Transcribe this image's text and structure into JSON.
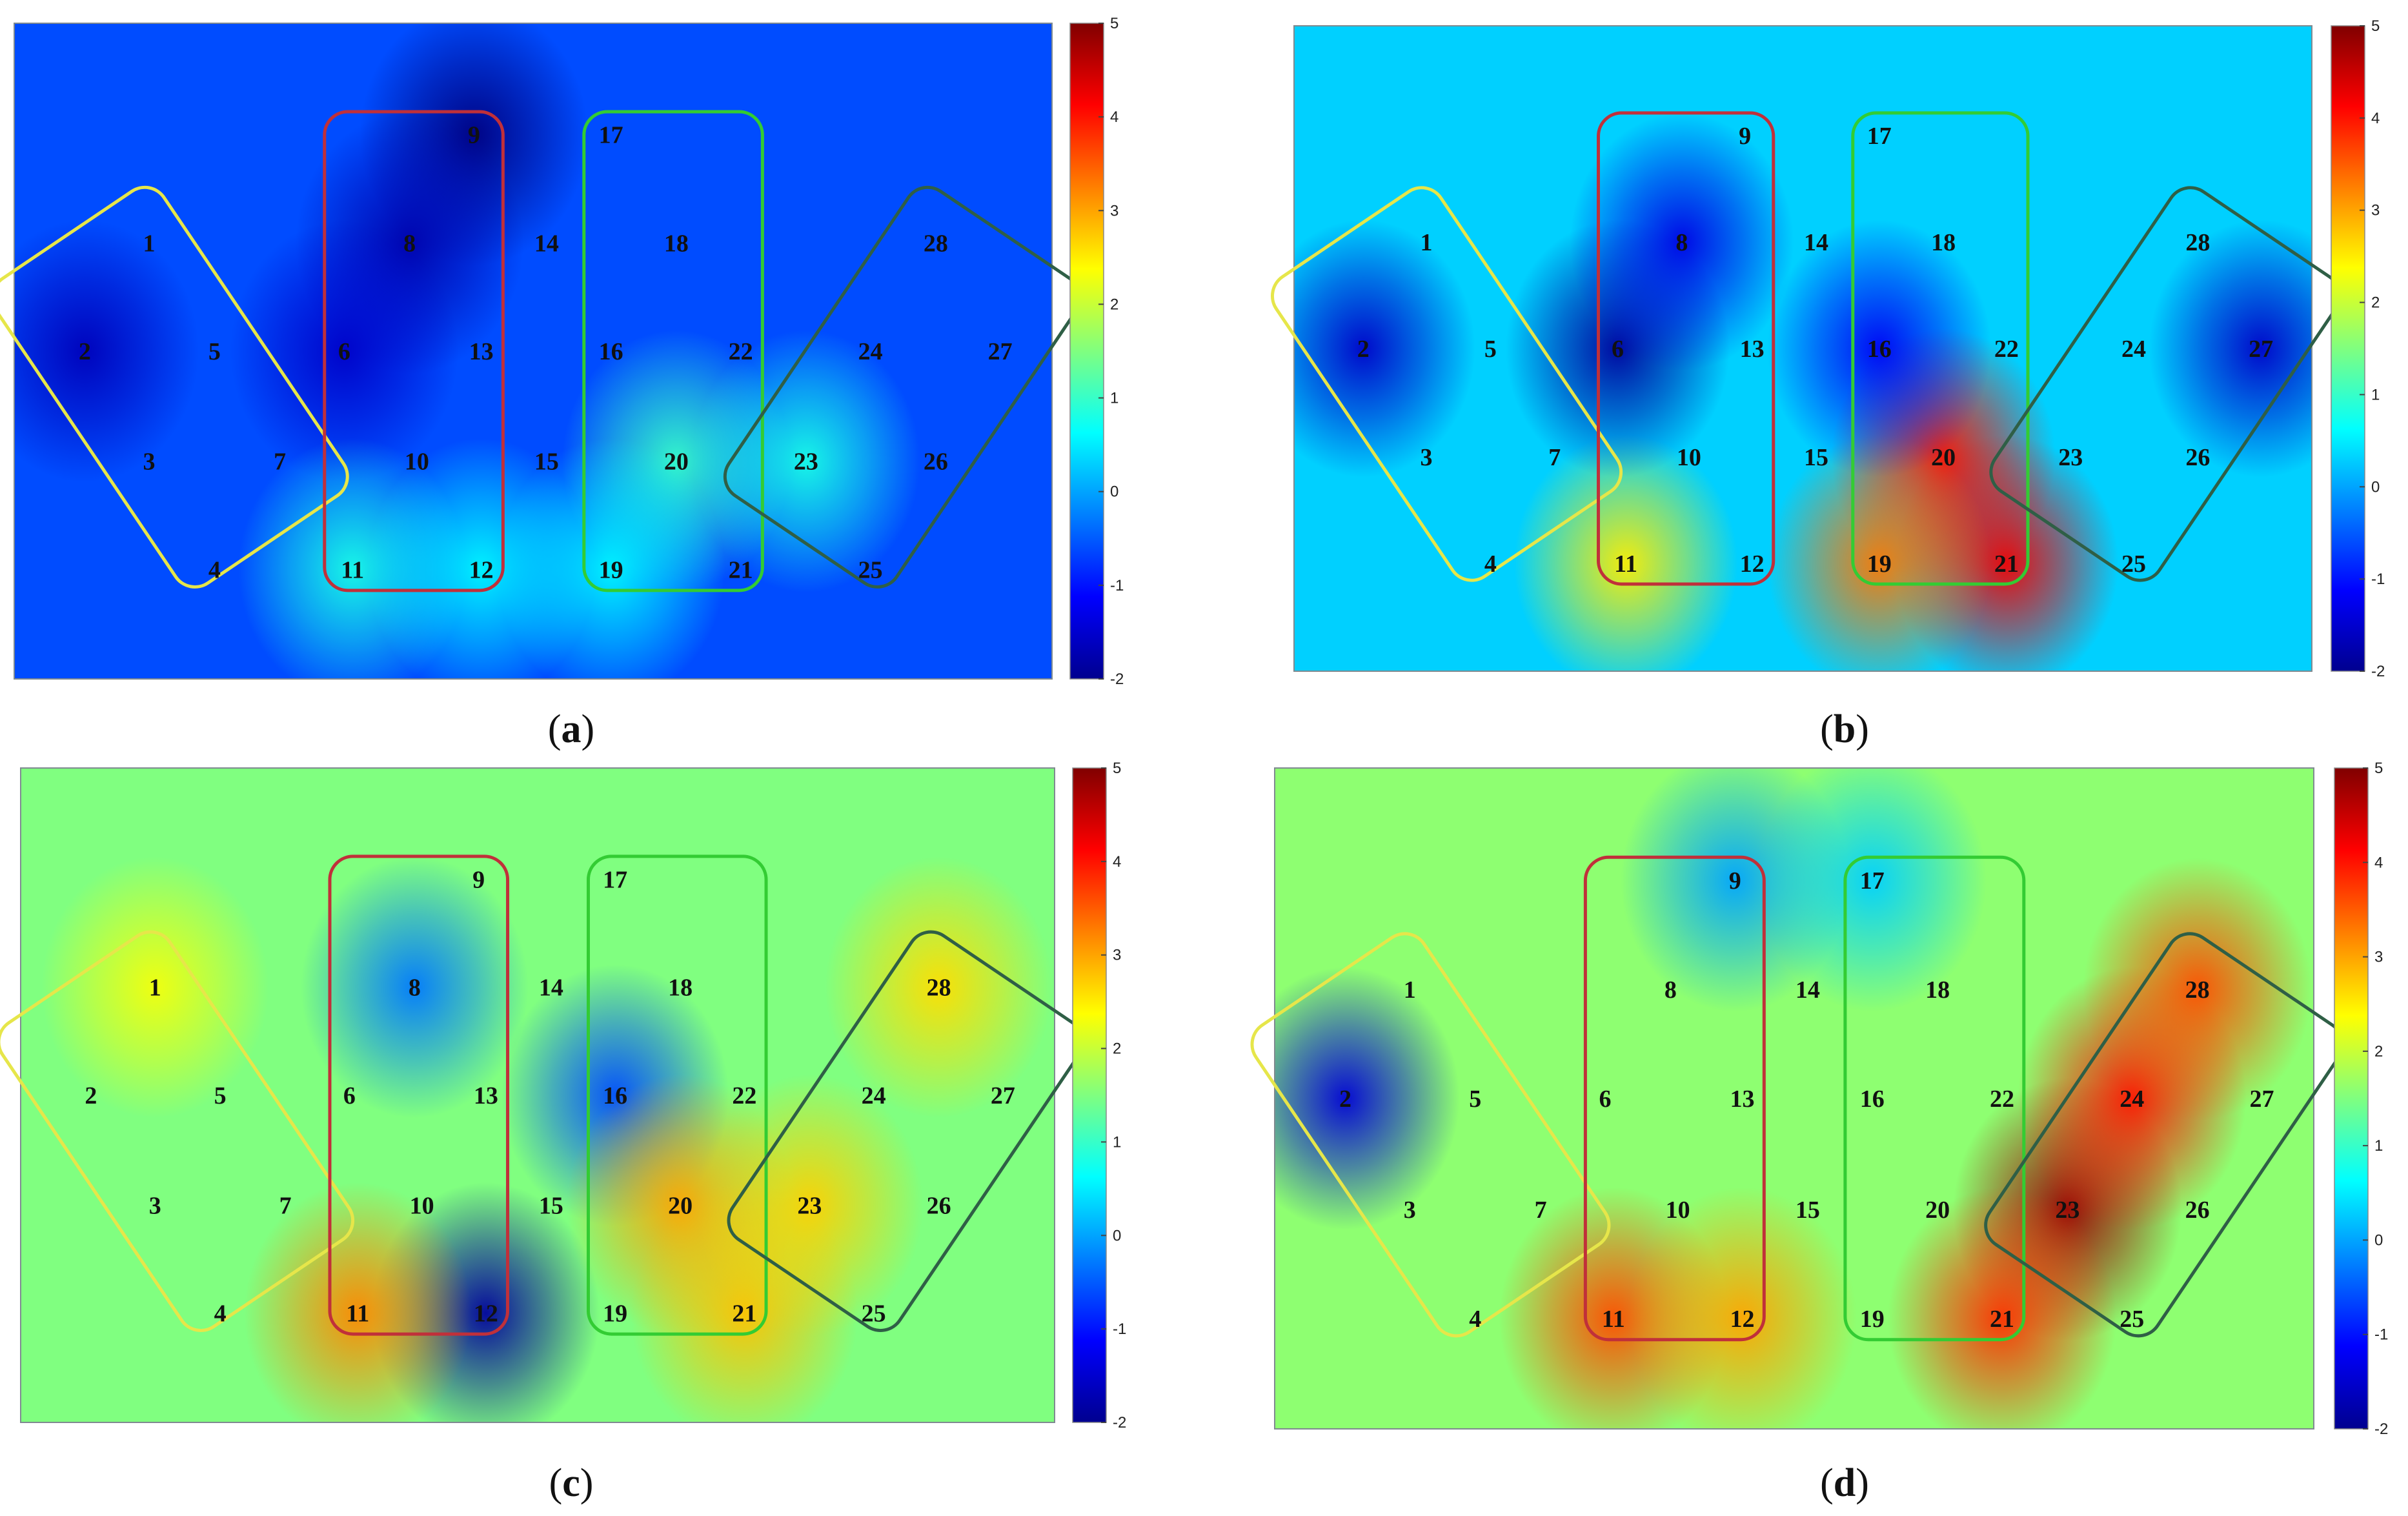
{
  "chart_data": [
    {
      "type": "heatmap",
      "panel_label": "a",
      "colorbar": {
        "min": -2,
        "max": 5,
        "ticks": [
          5,
          4,
          3,
          2,
          1,
          0,
          -1,
          -2
        ],
        "colormap": "jet"
      },
      "electrodes": [
        "1",
        "2",
        "3",
        "4",
        "5",
        "6",
        "7",
        "8",
        "9",
        "10",
        "11",
        "12",
        "13",
        "14",
        "15",
        "16",
        "17",
        "18",
        "19",
        "20",
        "21",
        "22",
        "23",
        "24",
        "25",
        "26",
        "27",
        "28"
      ],
      "regions": [
        {
          "color": "#e6e64a",
          "electrodes": [
            "1",
            "2",
            "3",
            "4",
            "5",
            "7"
          ]
        },
        {
          "color": "#c0303a",
          "electrodes": [
            "6",
            "8",
            "9",
            "10",
            "11",
            "12",
            "13"
          ]
        },
        {
          "color": "#33cc33",
          "electrodes": [
            "16",
            "17",
            "18",
            "19",
            "20",
            "21",
            "22"
          ]
        },
        {
          "color": "#2f5f46",
          "electrodes": [
            "23",
            "24",
            "25",
            "26",
            "27",
            "28"
          ]
        }
      ],
      "baseline": -0.6,
      "hotspots": [
        {
          "near": "9",
          "value": -2.0
        },
        {
          "near": "8",
          "value": -1.7
        },
        {
          "near": "2",
          "value": -1.6
        },
        {
          "near": "6",
          "value": -1.5
        },
        {
          "near": "20",
          "value": 1.0
        },
        {
          "near": "11",
          "value": 0.8
        },
        {
          "near": "12",
          "value": 0.6
        },
        {
          "near": "23",
          "value": 0.8
        },
        {
          "near": "19",
          "value": 0.6
        }
      ]
    },
    {
      "type": "heatmap",
      "panel_label": "b",
      "colorbar": {
        "min": -2,
        "max": 5,
        "ticks": [
          5,
          4,
          3,
          2,
          1,
          0,
          -1,
          -2
        ],
        "colormap": "jet"
      },
      "electrodes": [
        "1",
        "2",
        "3",
        "4",
        "5",
        "6",
        "7",
        "8",
        "9",
        "10",
        "11",
        "12",
        "13",
        "14",
        "15",
        "16",
        "17",
        "18",
        "19",
        "20",
        "21",
        "22",
        "23",
        "24",
        "25",
        "26",
        "27",
        "28"
      ],
      "regions": [
        {
          "color": "#e6e64a",
          "electrodes": [
            "1",
            "2",
            "3",
            "4",
            "5",
            "7"
          ]
        },
        {
          "color": "#c0303a",
          "electrodes": [
            "6",
            "8",
            "9",
            "10",
            "11",
            "12",
            "13"
          ]
        },
        {
          "color": "#33cc33",
          "electrodes": [
            "16",
            "17",
            "18",
            "19",
            "20",
            "21",
            "22"
          ]
        },
        {
          "color": "#2f5f46",
          "electrodes": [
            "23",
            "24",
            "25",
            "26",
            "27",
            "28"
          ]
        }
      ],
      "baseline": 0.3,
      "hotspots": [
        {
          "near": "20",
          "value": 4.0
        },
        {
          "near": "21",
          "value": 4.2
        },
        {
          "near": "19",
          "value": 3.3
        },
        {
          "near": "11",
          "value": 2.5
        },
        {
          "near": "6",
          "value": -1.8
        },
        {
          "near": "2",
          "value": -1.5
        },
        {
          "near": "27",
          "value": -1.5
        },
        {
          "near": "8",
          "value": -1.3
        },
        {
          "near": "16",
          "value": -1.2
        }
      ]
    },
    {
      "type": "heatmap",
      "panel_label": "c",
      "colorbar": {
        "min": -2,
        "max": 5,
        "ticks": [
          5,
          4,
          3,
          2,
          1,
          0,
          -1,
          -2
        ],
        "colormap": "jet"
      },
      "electrodes": [
        "1",
        "2",
        "3",
        "4",
        "5",
        "6",
        "7",
        "8",
        "9",
        "10",
        "11",
        "12",
        "13",
        "14",
        "15",
        "16",
        "17",
        "18",
        "19",
        "20",
        "21",
        "22",
        "23",
        "24",
        "25",
        "26",
        "27",
        "28"
      ],
      "regions": [
        {
          "color": "#e6e64a",
          "electrodes": [
            "1",
            "2",
            "3",
            "4",
            "5",
            "7"
          ]
        },
        {
          "color": "#c0303a",
          "electrodes": [
            "6",
            "8",
            "9",
            "10",
            "11",
            "12",
            "13"
          ]
        },
        {
          "color": "#33cc33",
          "electrodes": [
            "16",
            "17",
            "18",
            "19",
            "20",
            "21",
            "22"
          ]
        },
        {
          "color": "#2f5f46",
          "electrodes": [
            "23",
            "24",
            "25",
            "26",
            "27",
            "28"
          ]
        }
      ],
      "baseline": 1.5,
      "hotspots": [
        {
          "near": "12",
          "value": -1.8
        },
        {
          "near": "16",
          "value": -0.6
        },
        {
          "near": "8",
          "value": -0.3
        },
        {
          "near": "11",
          "value": 3.2
        },
        {
          "near": "20",
          "value": 3.0
        },
        {
          "near": "21",
          "value": 2.8
        },
        {
          "near": "23",
          "value": 2.7
        },
        {
          "near": "1",
          "value": 2.3
        },
        {
          "near": "28",
          "value": 2.6
        }
      ]
    },
    {
      "type": "heatmap",
      "panel_label": "d",
      "colorbar": {
        "min": -2,
        "max": 5,
        "ticks": [
          5,
          4,
          3,
          2,
          1,
          0,
          -1,
          -2
        ],
        "colormap": "jet"
      },
      "electrodes": [
        "1",
        "2",
        "3",
        "4",
        "5",
        "6",
        "7",
        "8",
        "9",
        "10",
        "11",
        "12",
        "13",
        "14",
        "15",
        "16",
        "17",
        "18",
        "19",
        "20",
        "21",
        "22",
        "23",
        "24",
        "25",
        "26",
        "27",
        "28"
      ],
      "regions": [
        {
          "color": "#e6e64a",
          "electrodes": [
            "1",
            "2",
            "3",
            "4",
            "5",
            "7"
          ]
        },
        {
          "color": "#c0303a",
          "electrodes": [
            "6",
            "8",
            "9",
            "10",
            "11",
            "12",
            "13"
          ]
        },
        {
          "color": "#33cc33",
          "electrodes": [
            "16",
            "17",
            "18",
            "19",
            "20",
            "21",
            "22"
          ]
        },
        {
          "color": "#2f5f46",
          "electrodes": [
            "23",
            "24",
            "25",
            "26",
            "27",
            "28"
          ]
        }
      ],
      "baseline": 1.6,
      "hotspots": [
        {
          "near": "23",
          "value": 4.8
        },
        {
          "near": "24",
          "value": 4.0
        },
        {
          "near": "28",
          "value": 3.6
        },
        {
          "near": "21",
          "value": 3.8
        },
        {
          "near": "11",
          "value": 3.6
        },
        {
          "near": "12",
          "value": 3.0
        },
        {
          "near": "2",
          "value": -1.4
        },
        {
          "near": "9",
          "value": 0.0
        },
        {
          "near": "17",
          "value": 0.3
        }
      ]
    }
  ]
}
